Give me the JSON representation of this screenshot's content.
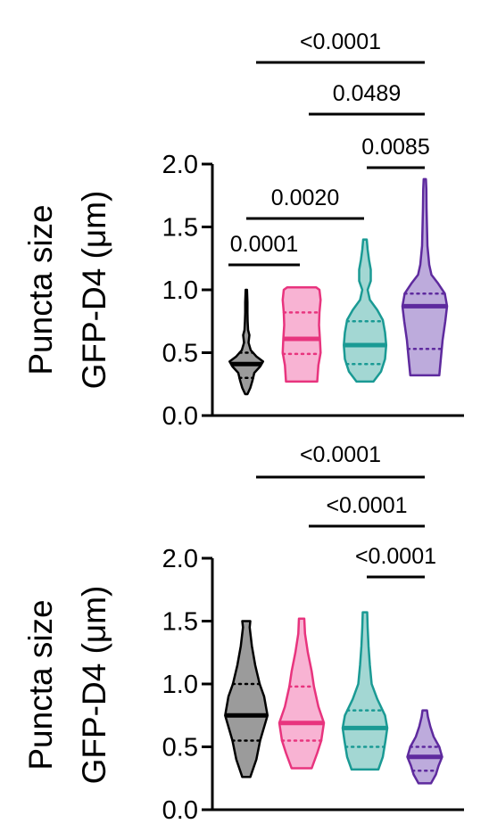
{
  "chart_data": [
    {
      "type": "violin",
      "ylabel_lines": [
        "Puncta size",
        "GFP-D4 (μm)"
      ],
      "ylim": [
        0.0,
        2.0
      ],
      "yticks": [
        "0.0",
        "0.5",
        "1.0",
        "1.5",
        "2.0"
      ],
      "tick_values": [
        0.0,
        0.5,
        1.0,
        1.5,
        2.0
      ],
      "series": [
        {
          "color": "#7a7a7a",
          "stroke": "#000000",
          "min": 0.17,
          "max": 1.0,
          "median": 0.41,
          "q1": 0.3,
          "q3": 0.5,
          "profile": [
            [
              0.17,
              0.05
            ],
            [
              0.22,
              0.18
            ],
            [
              0.28,
              0.28
            ],
            [
              0.34,
              0.36
            ],
            [
              0.39,
              0.62
            ],
            [
              0.43,
              0.75
            ],
            [
              0.47,
              0.45
            ],
            [
              0.52,
              0.2
            ],
            [
              0.58,
              0.1
            ],
            [
              0.64,
              0.14
            ],
            [
              0.68,
              0.08
            ],
            [
              0.75,
              0.06
            ],
            [
              0.82,
              0.05
            ],
            [
              0.9,
              0.05
            ],
            [
              1.0,
              0.03
            ]
          ]
        },
        {
          "color": "#f59ac4",
          "stroke": "#e8347e",
          "min": 0.27,
          "max": 1.02,
          "median": 0.61,
          "q1": 0.49,
          "q3": 0.82,
          "profile": [
            [
              0.27,
              0.7
            ],
            [
              0.4,
              0.75
            ],
            [
              0.5,
              0.85
            ],
            [
              0.61,
              0.82
            ],
            [
              0.72,
              0.78
            ],
            [
              0.82,
              0.8
            ],
            [
              0.92,
              0.85
            ],
            [
              1.0,
              0.8
            ],
            [
              1.02,
              0.65
            ]
          ]
        },
        {
          "color": "#84c9c4",
          "stroke": "#1a9a94",
          "min": 0.27,
          "max": 1.4,
          "median": 0.56,
          "q1": 0.41,
          "q3": 0.75,
          "profile": [
            [
              0.27,
              0.38
            ],
            [
              0.35,
              0.72
            ],
            [
              0.45,
              0.9
            ],
            [
              0.56,
              0.95
            ],
            [
              0.66,
              0.9
            ],
            [
              0.76,
              0.8
            ],
            [
              0.84,
              0.55
            ],
            [
              0.92,
              0.22
            ],
            [
              1.0,
              0.12
            ],
            [
              1.07,
              0.26
            ],
            [
              1.16,
              0.26
            ],
            [
              1.24,
              0.18
            ],
            [
              1.32,
              0.12
            ],
            [
              1.4,
              0.08
            ]
          ]
        },
        {
          "color": "#a78fd0",
          "stroke": "#5e2a9e",
          "min": 0.32,
          "max": 1.88,
          "median": 0.87,
          "q1": 0.53,
          "q3": 0.97,
          "profile": [
            [
              0.32,
              0.65
            ],
            [
              0.45,
              0.72
            ],
            [
              0.6,
              0.8
            ],
            [
              0.75,
              0.92
            ],
            [
              0.87,
              1.0
            ],
            [
              0.97,
              0.9
            ],
            [
              1.05,
              0.6
            ],
            [
              1.12,
              0.3
            ],
            [
              1.2,
              0.2
            ],
            [
              1.35,
              0.12
            ],
            [
              1.5,
              0.1
            ],
            [
              1.65,
              0.08
            ],
            [
              1.8,
              0.07
            ],
            [
              1.88,
              0.05
            ]
          ]
        }
      ],
      "comparisons": [
        {
          "label": "<0.0001",
          "from": 1,
          "to": 3
        },
        {
          "label": "0.0489",
          "from": 2,
          "to": 3
        },
        {
          "label": "0.0085",
          "from": 2,
          "to": 3
        },
        {
          "label": "0.0020",
          "from": 0,
          "to": 2
        },
        {
          "label": "0.0001",
          "from": 0,
          "to": 1
        }
      ]
    },
    {
      "type": "violin",
      "ylabel_lines": [
        "Puncta size",
        "GFP-D4 (μm)"
      ],
      "ylim": [
        0.0,
        2.0
      ],
      "yticks": [
        "0.0",
        "0.5",
        "1.0",
        "1.5",
        "2.0"
      ],
      "tick_values": [
        0.0,
        0.5,
        1.0,
        1.5,
        2.0
      ],
      "series": [
        {
          "color": "#7a7a7a",
          "stroke": "#000000",
          "min": 0.26,
          "max": 1.5,
          "median": 0.75,
          "q1": 0.55,
          "q3": 1.0,
          "profile": [
            [
              0.26,
              0.18
            ],
            [
              0.4,
              0.45
            ],
            [
              0.55,
              0.62
            ],
            [
              0.75,
              0.95
            ],
            [
              0.9,
              0.8
            ],
            [
              1.0,
              0.6
            ],
            [
              1.15,
              0.4
            ],
            [
              1.3,
              0.25
            ],
            [
              1.45,
              0.15
            ],
            [
              1.5,
              0.18
            ]
          ]
        },
        {
          "color": "#f59ac4",
          "stroke": "#e8347e",
          "min": 0.33,
          "max": 1.52,
          "median": 0.69,
          "q1": 0.55,
          "q3": 0.98,
          "profile": [
            [
              0.33,
              0.45
            ],
            [
              0.45,
              0.7
            ],
            [
              0.55,
              0.88
            ],
            [
              0.69,
              1.0
            ],
            [
              0.82,
              0.75
            ],
            [
              0.98,
              0.55
            ],
            [
              1.1,
              0.45
            ],
            [
              1.25,
              0.28
            ],
            [
              1.4,
              0.15
            ],
            [
              1.52,
              0.12
            ]
          ]
        },
        {
          "color": "#84c9c4",
          "stroke": "#1a9a94",
          "min": 0.32,
          "max": 1.57,
          "median": 0.65,
          "q1": 0.5,
          "q3": 0.79,
          "profile": [
            [
              0.32,
              0.6
            ],
            [
              0.42,
              0.8
            ],
            [
              0.55,
              0.92
            ],
            [
              0.65,
              1.0
            ],
            [
              0.75,
              0.9
            ],
            [
              0.88,
              0.55
            ],
            [
              1.0,
              0.3
            ],
            [
              1.15,
              0.22
            ],
            [
              1.3,
              0.16
            ],
            [
              1.45,
              0.12
            ],
            [
              1.57,
              0.1
            ]
          ]
        },
        {
          "color": "#a78fd0",
          "stroke": "#5e2a9e",
          "min": 0.21,
          "max": 0.79,
          "median": 0.42,
          "q1": 0.31,
          "q3": 0.5,
          "profile": [
            [
              0.21,
              0.28
            ],
            [
              0.28,
              0.5
            ],
            [
              0.35,
              0.62
            ],
            [
              0.42,
              0.78
            ],
            [
              0.5,
              0.65
            ],
            [
              0.58,
              0.4
            ],
            [
              0.66,
              0.25
            ],
            [
              0.74,
              0.14
            ],
            [
              0.79,
              0.1
            ]
          ]
        }
      ],
      "comparisons": [
        {
          "label": "<0.0001",
          "from": 1,
          "to": 3
        },
        {
          "label": "<0.0001",
          "from": 2,
          "to": 3
        },
        {
          "label": "<0.0001",
          "from": 3,
          "to": 3
        }
      ]
    }
  ]
}
